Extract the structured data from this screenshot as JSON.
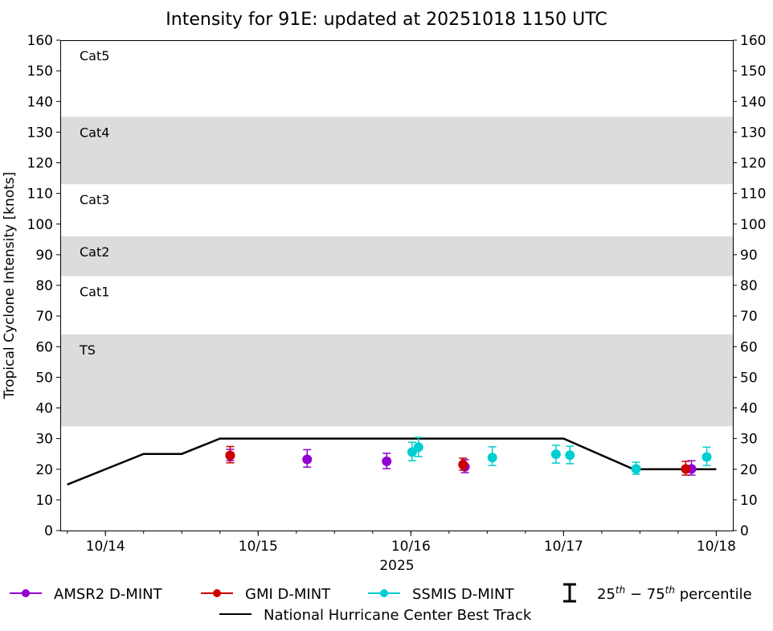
{
  "chart_data": {
    "type": "scatter",
    "title": "Intensity for 91E: updated at 20251018 1150 UTC",
    "xlabel": "2025",
    "ylabel": "Tropical Cyclone Intensity [knots]",
    "ylim": [
      0,
      160
    ],
    "yticks": [
      0,
      10,
      20,
      30,
      40,
      50,
      60,
      70,
      80,
      90,
      100,
      110,
      120,
      130,
      140,
      150,
      160
    ],
    "xlim": [
      "2025-10-13T16:54Z",
      "2025-10-18T02:36Z"
    ],
    "xticks": [
      {
        "t": "2025-10-14T00:00Z",
        "label": "10/14"
      },
      {
        "t": "2025-10-15T00:00Z",
        "label": "10/15"
      },
      {
        "t": "2025-10-16T00:00Z",
        "label": "10/16"
      },
      {
        "t": "2025-10-17T00:00Z",
        "label": "10/17"
      },
      {
        "t": "2025-10-18T00:00Z",
        "label": "10/18"
      }
    ],
    "grid": false,
    "category_bands": [
      {
        "label": "TS",
        "from": 34,
        "to": 64,
        "shaded": true
      },
      {
        "label": "Cat1",
        "from": 64,
        "to": 83,
        "shaded": false
      },
      {
        "label": "Cat2",
        "from": 83,
        "to": 96,
        "shaded": true
      },
      {
        "label": "Cat3",
        "from": 96,
        "to": 113,
        "shaded": false
      },
      {
        "label": "Cat4",
        "from": 113,
        "to": 135,
        "shaded": true
      },
      {
        "label": "Cat5",
        "from": 135,
        "to": 160,
        "shaded": false
      }
    ],
    "band_color": "#dcdcdc",
    "best_track": {
      "name": "National Hurricane Center Best Track",
      "color": "#000000",
      "points": [
        {
          "t": "2025-10-13T18:00Z",
          "v": 15
        },
        {
          "t": "2025-10-14T06:00Z",
          "v": 25
        },
        {
          "t": "2025-10-14T12:00Z",
          "v": 25
        },
        {
          "t": "2025-10-14T18:00Z",
          "v": 30
        },
        {
          "t": "2025-10-17T00:00Z",
          "v": 30
        },
        {
          "t": "2025-10-17T11:00Z",
          "v": 20
        },
        {
          "t": "2025-10-18T00:00Z",
          "v": 20
        }
      ]
    },
    "series": [
      {
        "name": "AMSR2 D-MINT",
        "color": "#9400d3",
        "points": [
          {
            "t": "2025-10-14T19:36Z",
            "v": 24.5,
            "p25": 22.8,
            "p75": 26.5
          },
          {
            "t": "2025-10-15T07:42Z",
            "v": 23.2,
            "p25": 20.7,
            "p75": 26.4
          },
          {
            "t": "2025-10-15T20:12Z",
            "v": 22.6,
            "p25": 20.2,
            "p75": 25.2
          },
          {
            "t": "2025-10-16T08:30Z",
            "v": 20.8,
            "p25": 18.9,
            "p75": 23.1
          },
          {
            "t": "2025-10-17T20:06Z",
            "v": 20.1,
            "p25": 18.1,
            "p75": 22.8
          }
        ]
      },
      {
        "name": "GMI D-MINT",
        "color": "#cc0000",
        "points": [
          {
            "t": "2025-10-14T19:36Z",
            "v": 24.5,
            "p25": 22.1,
            "p75": 27.4
          },
          {
            "t": "2025-10-16T08:12Z",
            "v": 21.5,
            "p25": 19.7,
            "p75": 23.6
          },
          {
            "t": "2025-10-17T19:12Z",
            "v": 20.1,
            "p25": 18.1,
            "p75": 22.6
          }
        ]
      },
      {
        "name": "SSMIS D-MINT",
        "color": "#00ced1",
        "points": [
          {
            "t": "2025-10-16T00:12Z",
            "v": 25.6,
            "p25": 22.8,
            "p75": 28.8
          },
          {
            "t": "2025-10-16T01:12Z",
            "v": 27.2,
            "p25": 24.1,
            "p75": 30.4
          },
          {
            "t": "2025-10-16T12:48Z",
            "v": 23.8,
            "p25": 21.2,
            "p75": 27.3
          },
          {
            "t": "2025-10-16T22:48Z",
            "v": 24.9,
            "p25": 22.0,
            "p75": 27.8
          },
          {
            "t": "2025-10-17T01:00Z",
            "v": 24.6,
            "p25": 21.8,
            "p75": 27.5
          },
          {
            "t": "2025-10-17T11:24Z",
            "v": 20.1,
            "p25": 18.4,
            "p75": 22.3
          },
          {
            "t": "2025-10-17T22:30Z",
            "v": 24.0,
            "p25": 21.2,
            "p75": 27.2
          }
        ]
      }
    ],
    "legend": {
      "placement": "bottom",
      "percentile": {
        "low": "25",
        "low_sup": "th",
        "sep": " − ",
        "high": "75",
        "high_sup": "th",
        "suffix": " percentile"
      }
    }
  }
}
